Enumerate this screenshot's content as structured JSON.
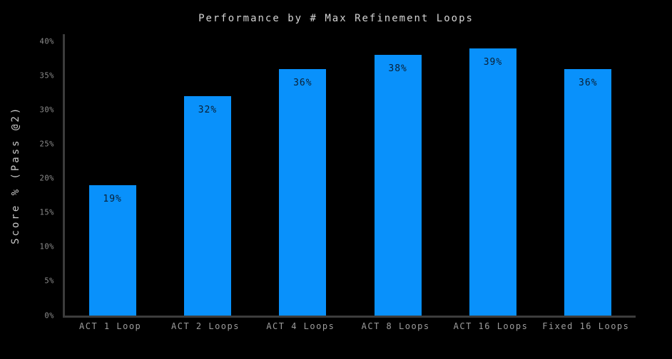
{
  "title": "Performance by # Max Refinement Loops",
  "colors": {
    "background": "#000000",
    "bar": "#0991fb",
    "bar_label_text": "#0b1f33",
    "title_text": "#d4d4d4",
    "axis_line": "#3c3c3c",
    "y_tick_text": "#8c8c8c",
    "x_tick_text": "#9d9d9d",
    "y_axis_label_text": "#c9c9c9"
  },
  "chart_data": {
    "type": "bar",
    "title": "Performance by # Max Refinement Loops",
    "categories": [
      "ACT 1 Loop",
      "ACT 2 Loops",
      "ACT 4 Loops",
      "ACT 8 Loops",
      "ACT 16 Loops",
      "Fixed 16 Loops"
    ],
    "values": [
      19,
      32,
      36,
      38,
      39,
      36
    ],
    "bar_labels": [
      "19%",
      "32%",
      "36%",
      "38%",
      "39%",
      "36%"
    ],
    "xlabel": "",
    "ylabel": "Score % (Pass @2)",
    "ylim": [
      0,
      40
    ],
    "y_tick_values": [
      0,
      5,
      10,
      15,
      20,
      25,
      30,
      35,
      40
    ],
    "y_tick_labels": [
      "0%",
      "5%",
      "10%",
      "15%",
      "20%",
      "25%",
      "30%",
      "35%",
      "40%"
    ],
    "grid": false,
    "legend": false,
    "background": "black",
    "bar_color": "#0991fb"
  }
}
